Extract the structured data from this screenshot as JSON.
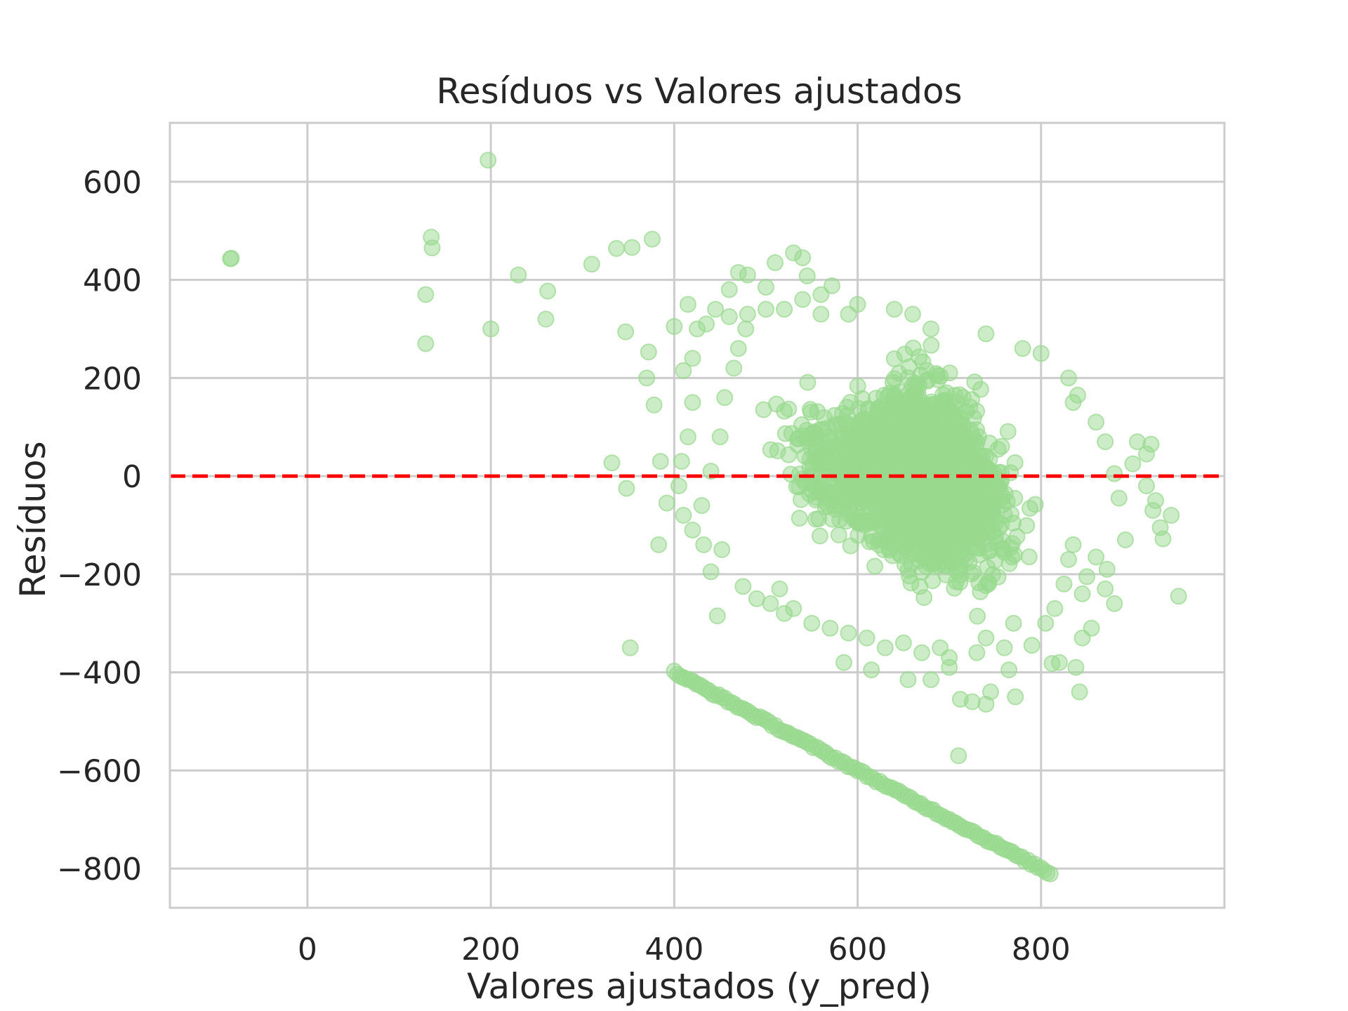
{
  "chart_data": {
    "type": "scatter",
    "title": "Resíduos vs Valores ajustados",
    "xlabel": "Valores ajustados (y_pred)",
    "ylabel": "Resíduos",
    "xlim": [
      -150,
      1000
    ],
    "ylim": [
      -880,
      720
    ],
    "xticks": [
      0,
      200,
      400,
      600,
      800
    ],
    "yticks": [
      -800,
      -600,
      -400,
      -200,
      0,
      200,
      400,
      600
    ],
    "xtick_labels": [
      "0",
      "200",
      "400",
      "600",
      "800"
    ],
    "ytick_labels": [
      "−800",
      "−600",
      "−400",
      "−200",
      "0",
      "200",
      "400",
      "600"
    ],
    "grid": true,
    "marker_color": "#98d98e",
    "marker_alpha": 0.5,
    "reference_line": {
      "y": 0,
      "color": "#ff0000",
      "style": "dashed"
    },
    "points": [
      [
        -84,
        443
      ],
      [
        -83,
        444
      ],
      [
        135,
        487
      ],
      [
        136,
        465
      ],
      [
        129,
        370
      ],
      [
        129,
        270
      ],
      [
        197,
        644
      ],
      [
        200,
        300
      ],
      [
        230,
        410
      ],
      [
        262,
        377
      ],
      [
        260,
        320
      ],
      [
        310,
        432
      ],
      [
        337,
        464
      ],
      [
        354,
        466
      ],
      [
        376,
        483
      ],
      [
        347,
        294
      ],
      [
        332,
        27
      ],
      [
        348,
        -25
      ],
      [
        352,
        -350
      ],
      [
        372,
        253
      ],
      [
        370,
        200
      ],
      [
        378,
        145
      ],
      [
        385,
        30
      ],
      [
        392,
        -55
      ],
      [
        383,
        -140
      ],
      [
        400,
        305
      ],
      [
        410,
        215
      ],
      [
        415,
        350
      ],
      [
        420,
        240
      ],
      [
        425,
        300
      ],
      [
        432,
        -140
      ],
      [
        440,
        -195
      ],
      [
        447,
        -285
      ],
      [
        452,
        -150
      ],
      [
        460,
        380
      ],
      [
        470,
        415
      ],
      [
        480,
        410
      ],
      [
        500,
        385
      ],
      [
        510,
        435
      ],
      [
        530,
        455
      ],
      [
        540,
        445
      ],
      [
        545,
        408
      ],
      [
        560,
        370
      ],
      [
        572,
        388
      ],
      [
        475,
        -225
      ],
      [
        490,
        -250
      ],
      [
        505,
        -260
      ],
      [
        520,
        -280
      ],
      [
        585,
        -380
      ],
      [
        615,
        -395
      ],
      [
        655,
        -415
      ],
      [
        680,
        -415
      ],
      [
        700,
        -390
      ],
      [
        712,
        -455
      ],
      [
        710,
        -570
      ],
      [
        725,
        -460
      ],
      [
        740,
        -465
      ],
      [
        745,
        -440
      ],
      [
        765,
        -395
      ],
      [
        772,
        -450
      ],
      [
        790,
        -345
      ],
      [
        812,
        -382
      ],
      [
        820,
        -380
      ],
      [
        838,
        -390
      ],
      [
        842,
        -440
      ],
      [
        845,
        -330
      ],
      [
        855,
        -310
      ],
      [
        845,
        -240
      ],
      [
        850,
        -205
      ],
      [
        870,
        -230
      ],
      [
        880,
        -260
      ],
      [
        892,
        -130
      ],
      [
        872,
        -190
      ],
      [
        900,
        25
      ],
      [
        905,
        70
      ],
      [
        915,
        -20
      ],
      [
        922,
        -70
      ],
      [
        915,
        45
      ],
      [
        920,
        65
      ],
      [
        925,
        -50
      ],
      [
        930,
        -105
      ],
      [
        933,
        -128
      ],
      [
        942,
        -80
      ],
      [
        950,
        -245
      ],
      [
        860,
        110
      ],
      [
        840,
        165
      ],
      [
        835,
        150
      ],
      [
        870,
        70
      ],
      [
        880,
        5
      ],
      [
        885,
        -45
      ],
      [
        860,
        -165
      ],
      [
        830,
        -170
      ],
      [
        830,
        200
      ],
      [
        800,
        250
      ],
      [
        780,
        260
      ],
      [
        740,
        290
      ],
      [
        680,
        300
      ],
      [
        660,
        330
      ],
      [
        640,
        340
      ],
      [
        600,
        350
      ],
      [
        590,
        330
      ],
      [
        560,
        330
      ],
      [
        540,
        360
      ],
      [
        520,
        340
      ],
      [
        500,
        340
      ],
      [
        480,
        330
      ],
      [
        460,
        325
      ],
      [
        445,
        340
      ],
      [
        435,
        310
      ],
      [
        420,
        150
      ],
      [
        415,
        80
      ],
      [
        408,
        30
      ],
      [
        405,
        -20
      ],
      [
        410,
        -80
      ],
      [
        420,
        -110
      ],
      [
        430,
        -60
      ],
      [
        440,
        10
      ],
      [
        450,
        80
      ],
      [
        455,
        160
      ],
      [
        465,
        220
      ],
      [
        470,
        260
      ],
      [
        478,
        300
      ],
      [
        770,
        -300
      ],
      [
        760,
        -350
      ],
      [
        740,
        -330
      ],
      [
        730,
        -360
      ],
      [
        700,
        -370
      ],
      [
        690,
        -350
      ],
      [
        670,
        -360
      ],
      [
        650,
        -340
      ],
      [
        630,
        -350
      ],
      [
        610,
        -330
      ],
      [
        590,
        -320
      ],
      [
        570,
        -310
      ],
      [
        550,
        -300
      ],
      [
        530,
        -270
      ],
      [
        515,
        -230
      ],
      [
        805,
        -300
      ],
      [
        815,
        -270
      ],
      [
        825,
        -220
      ],
      [
        835,
        -140
      ]
    ],
    "clusters": [
      {
        "x": [
          560,
          800
        ],
        "y": [
          -310,
          300
        ],
        "center": [
          680,
          0
        ]
      },
      {
        "x": [
          480,
          860
        ],
        "y": [
          -260,
          220
        ],
        "center": [
          650,
          -20
        ]
      }
    ],
    "line_band": {
      "x_start": 400,
      "x_end": 810,
      "y_start": -400,
      "y_end": -810
    }
  }
}
